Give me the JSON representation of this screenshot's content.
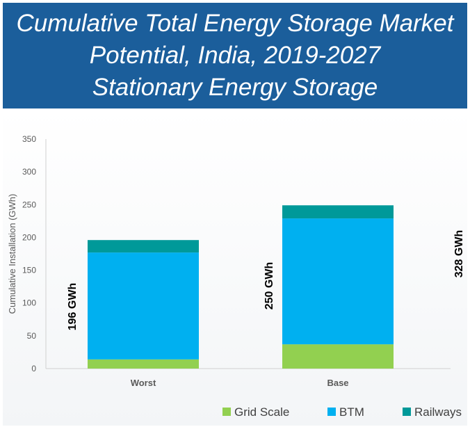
{
  "title_lines": [
    "Cumulative Total Energy Storage Market",
    "Potential, India, 2019-2027",
    "Stationary Energy Storage"
  ],
  "chart_data": {
    "type": "bar",
    "stacked": true,
    "categories": [
      "Worst",
      "Base"
    ],
    "ylabel": "Cumulative Installation (GWh)",
    "ylim": [
      0,
      350
    ],
    "yticks": [
      0,
      50,
      100,
      150,
      200,
      250,
      300,
      350
    ],
    "series": [
      {
        "name": "Grid Scale",
        "color": "#92d050",
        "values": [
          14,
          37
        ]
      },
      {
        "name": "BTM",
        "color": "#00b0f0",
        "values": [
          163,
          192
        ]
      },
      {
        "name": "Railways",
        "color": "#009999",
        "values": [
          19,
          20
        ]
      }
    ],
    "annotations": [
      "196 GWh",
      "250 GWh",
      "328 GWh"
    ],
    "legend_position": "bottom-right"
  }
}
